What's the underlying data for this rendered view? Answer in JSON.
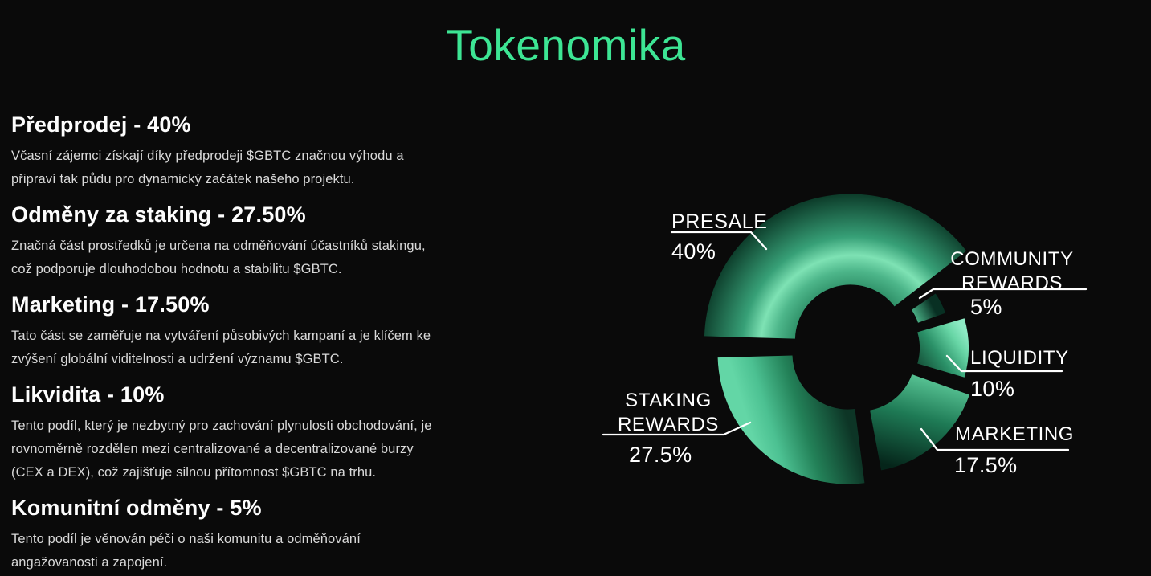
{
  "page": {
    "title": "Tokenomika",
    "background_color": "#0a0a0a",
    "accent_color": "#3de594",
    "text_color": "#d9d9d9"
  },
  "sections": [
    {
      "heading": "Předprodej - 40%",
      "body": "Včasní zájemci získají díky předprodeji $GBTC značnou výhodu a\npřipraví tak půdu pro dynamický začátek našeho projektu."
    },
    {
      "heading": "Odměny za staking - 27.50%",
      "body": "Značná část prostředků je určena na odměňování účastníků stakingu,\ncož podporuje dlouhodobou hodnotu a stabilitu $GBTC."
    },
    {
      "heading": "Marketing - 17.50%",
      "body": "Tato část se zaměřuje na vytváření působivých kampaní a je klíčem ke\nzvýšení globální viditelnosti a udržení významu $GBTC."
    },
    {
      "heading": "Likvidita - 10%",
      "body": "Tento podíl, který je nezbytný pro zachování plynulosti obchodování, je\nrovnoměrně rozdělen mezi centralizované a decentralizované burzy\n(CEX a DEX), což zajišťuje silnou přítomnost $GBTC na trhu."
    },
    {
      "heading": "Komunitní odměny - 5%",
      "body": "Tento podíl je věnován péči o naši komunitu a odměňování\nangažovanosti a zapojení."
    }
  ],
  "chart_data": {
    "type": "pie",
    "variant": "exploded donut, slice outer radius scaled by value, metallic green gradient fills",
    "title": "Tokenomika",
    "unit": "%",
    "slices": [
      {
        "id": "presale",
        "label": "PRESALE",
        "pct": "40%",
        "value": 40
      },
      {
        "id": "community-rewards",
        "label": "COMMUNITY REWARDS",
        "pct": "5%",
        "value": 5
      },
      {
        "id": "liquidity",
        "label": "LIQUIDITY",
        "pct": "10%",
        "value": 10
      },
      {
        "id": "marketing",
        "label": "MARKETING",
        "pct": "17.5%",
        "value": 17.5
      },
      {
        "id": "staking-rewards",
        "label": "STAKING REWARDS",
        "pct": "27.5%",
        "value": 27.5
      }
    ],
    "legend_position": "callout labels around chart",
    "palette": {
      "slice_dark": "#0a3021",
      "slice_mid": "#2e9c6f",
      "slice_light": "#7ee2b4",
      "callout_line": "#ffffff",
      "label_text": "#ffffff"
    }
  }
}
